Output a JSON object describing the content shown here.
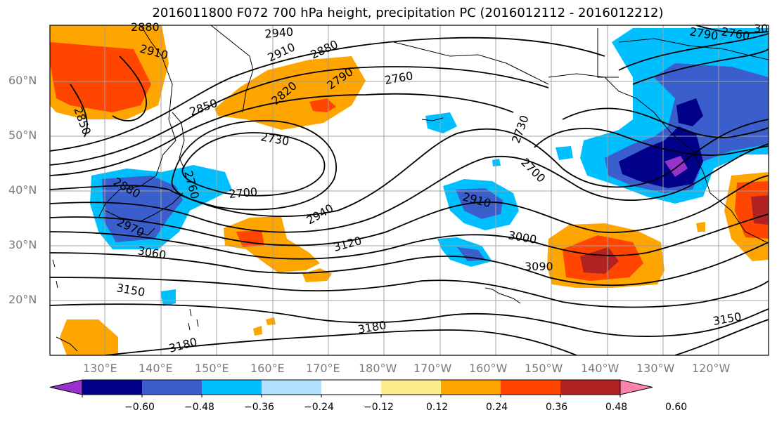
{
  "title": "2016011800 F072 700 hPa height, precipitation PC (2016012112 - 2016012212)",
  "map": {
    "lat_ticks": [
      "60°N",
      "50°N",
      "40°N",
      "30°N",
      "20°N"
    ],
    "lon_ticks": [
      "130°E",
      "140°E",
      "150°E",
      "160°E",
      "170°E",
      "180°W",
      "170°W",
      "160°W",
      "150°W",
      "140°W",
      "130°W",
      "120°W"
    ],
    "contour_labels": [
      "2880",
      "2910",
      "2940",
      "2910",
      "2880",
      "2820",
      "2790",
      "2760",
      "2850",
      "2850",
      "2730",
      "2700",
      "2730",
      "2700",
      "2760",
      "2880",
      "2970",
      "3060",
      "3150",
      "2940",
      "3120",
      "2910",
      "3000",
      "3090",
      "3180",
      "3180",
      "3150",
      "2790",
      "2760",
      "30"
    ]
  },
  "colorbar": {
    "ticks": [
      "−0.60",
      "−0.48",
      "−0.36",
      "−0.24",
      "−0.12",
      "0.12",
      "0.24",
      "0.36",
      "0.48",
      "0.60"
    ],
    "colors": [
      "#9932cc",
      "#00008b",
      "#3a5fcd",
      "#00bfff",
      "#b0e2ff",
      "#ffffff",
      "#ffec8b",
      "#ffa500",
      "#ff4500",
      "#b22222",
      "#ff82ab"
    ]
  }
}
